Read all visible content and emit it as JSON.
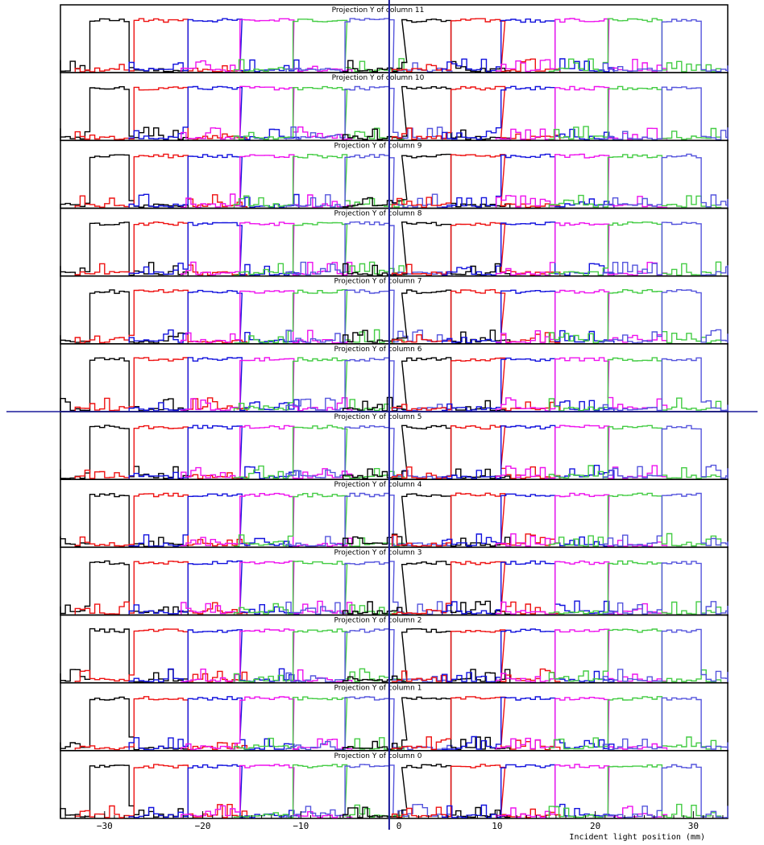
{
  "chart_data": {
    "type": "line",
    "xlabel": "Incident light position (mm)",
    "xlim": [
      -34.5,
      33.5
    ],
    "x_ticks": [
      {
        "value": -30,
        "label": "−30"
      },
      {
        "value": -20,
        "label": "−20"
      },
      {
        "value": -10,
        "label": "−10"
      },
      {
        "value": 0,
        "label": "0"
      },
      {
        "value": 10,
        "label": "10"
      },
      {
        "value": 20,
        "label": "20"
      },
      {
        "value": 30,
        "label": "30"
      }
    ],
    "vertical_marker_x": -1,
    "panel_order": [
      11,
      10,
      9,
      8,
      7,
      6,
      5,
      4,
      3,
      2,
      1,
      0
    ],
    "panel_titles": [
      "Projection Y of column 11",
      "Projection Y of column 10",
      "Projection Y of column 9",
      "Projection Y of column 8",
      "Projection Y of column 7",
      "Projection Y of column 6",
      "Projection Y of column 5",
      "Projection Y of column 4",
      "Projection Y of column 3",
      "Projection Y of column 2",
      "Projection Y of column 1",
      "Projection Y of column 0"
    ],
    "series_colors": [
      "#000000",
      "#ee1111",
      "#1111dd",
      "#ee11ee",
      "#44cc44",
      "#5555dd"
    ],
    "channels": [
      {
        "color_index": 0,
        "x_start": -31.5,
        "x_end": -27.5
      },
      {
        "color_index": 1,
        "x_start": -27.0,
        "x_end": -21.5
      },
      {
        "color_index": 2,
        "x_start": -21.5,
        "x_end": -16.2
      },
      {
        "color_index": 3,
        "x_start": -16.2,
        "x_end": -10.8
      },
      {
        "color_index": 4,
        "x_start": -10.8,
        "x_end": -5.5
      },
      {
        "color_index": 5,
        "x_start": -5.5,
        "x_end": -0.6
      },
      {
        "color_index": 0,
        "x_start": 0.3,
        "x_end": 5.3
      },
      {
        "color_index": 1,
        "x_start": 5.3,
        "x_end": 10.4
      },
      {
        "color_index": 2,
        "x_start": 10.4,
        "x_end": 15.9
      },
      {
        "color_index": 3,
        "x_start": 15.9,
        "x_end": 21.3
      },
      {
        "color_index": 4,
        "x_start": 21.3,
        "x_end": 26.8
      },
      {
        "color_index": 5,
        "x_start": 26.8,
        "x_end": 30.8
      }
    ],
    "plateau_level": 0.85,
    "grid": false,
    "legend": "none"
  }
}
